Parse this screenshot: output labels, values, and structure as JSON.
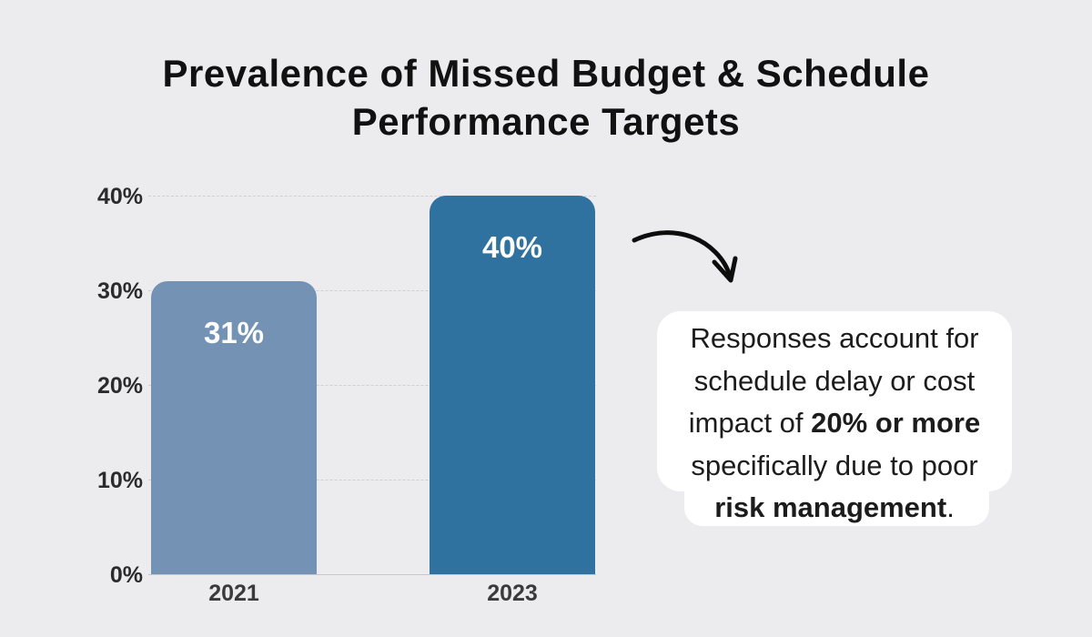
{
  "title_lines": [
    "Prevalence of Missed Budget & Schedule",
    "Performance Targets"
  ],
  "chart_data": {
    "type": "bar",
    "title": "Prevalence of Missed Budget & Schedule Performance Targets",
    "categories": [
      "2021",
      "2023"
    ],
    "values": [
      31,
      40
    ],
    "value_labels": [
      "31%",
      "40%"
    ],
    "ylim": [
      0,
      40
    ],
    "ytick_labels": [
      "0%",
      "10%",
      "20%",
      "30%",
      "40%"
    ],
    "grid": true,
    "legend_position": "none",
    "bar_colors": [
      "#7493b4",
      "#2f719f"
    ]
  },
  "annotation": {
    "line1": "Responses account for",
    "line2": "schedule delay or cost",
    "line3_normal": "impact of ",
    "line3_bold": "20% or more",
    "line4": "specifically due to poor",
    "line5_bold": "risk management",
    "line5_normal": "."
  },
  "colors": {
    "background": "#ececee",
    "bar_2021": "#7493b4",
    "bar_2023": "#2f719f",
    "gridline": "#d0d0d3",
    "title_text": "#111111",
    "bar_value_text": "#ffffff",
    "annotation_bg": "#ffffff",
    "annotation_text": "#1c1c1c",
    "arrow": "#0d0d0d"
  }
}
